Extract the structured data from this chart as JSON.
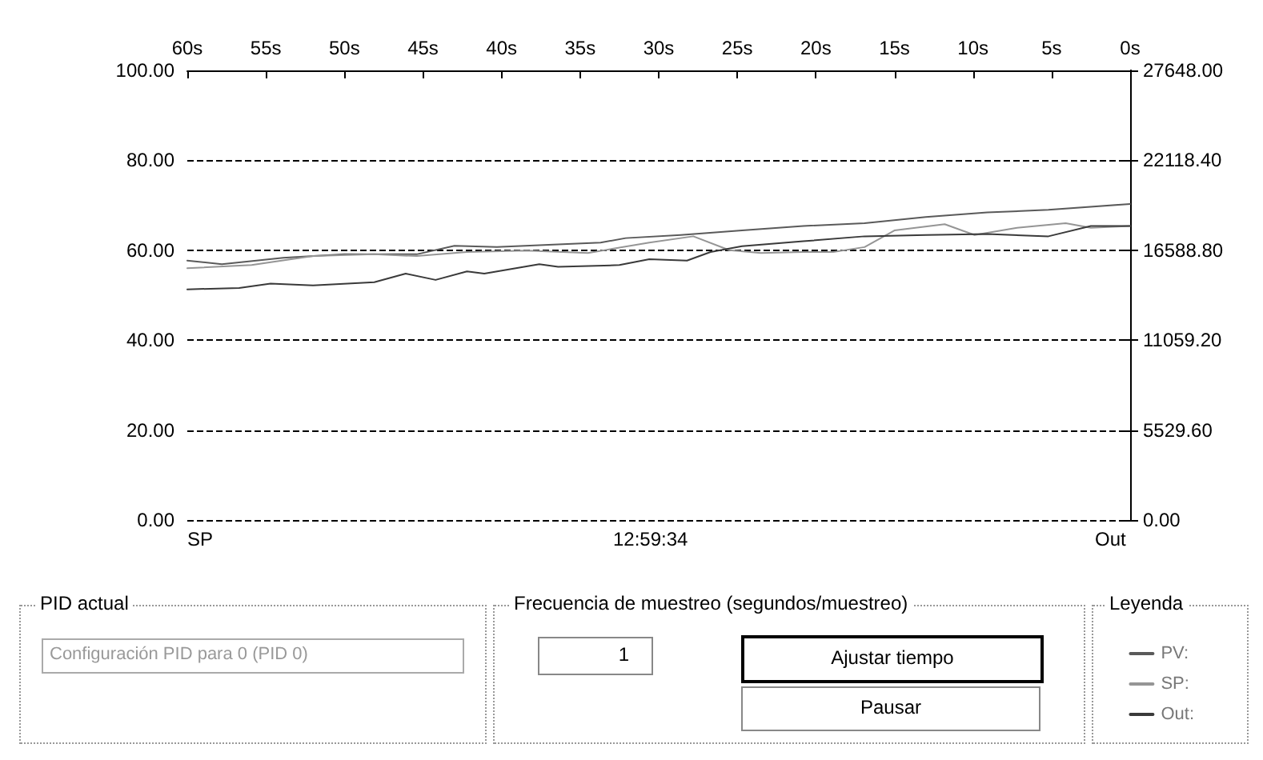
{
  "chart_data": {
    "type": "line",
    "xlim": [
      60,
      0
    ],
    "xticks": [
      {
        "value": 60,
        "label": "60s"
      },
      {
        "value": 55,
        "label": "55s"
      },
      {
        "value": 50,
        "label": "50s"
      },
      {
        "value": 45,
        "label": "45s"
      },
      {
        "value": 40,
        "label": "40s"
      },
      {
        "value": 35,
        "label": "35s"
      },
      {
        "value": 30,
        "label": "30s"
      },
      {
        "value": 25,
        "label": "25s"
      },
      {
        "value": 20,
        "label": "20s"
      },
      {
        "value": 15,
        "label": "15s"
      },
      {
        "value": 10,
        "label": "10s"
      },
      {
        "value": 5,
        "label": "5s"
      },
      {
        "value": 0,
        "label": "0s"
      }
    ],
    "ylim": [
      0,
      100
    ],
    "yticks": [
      {
        "value": 0,
        "label": "0.00"
      },
      {
        "value": 20,
        "label": "20.00"
      },
      {
        "value": 40,
        "label": "40.00"
      },
      {
        "value": 60,
        "label": "60.00"
      },
      {
        "value": 80,
        "label": "80.00"
      },
      {
        "value": 100,
        "label": "100.00"
      }
    ],
    "y2lim": [
      0,
      27648
    ],
    "y2ticks": [
      {
        "value": 0,
        "label": "0.00"
      },
      {
        "value": 5529.6,
        "label": "5529.60"
      },
      {
        "value": 11059.2,
        "label": "11059.20"
      },
      {
        "value": 16588.8,
        "label": "16588.80"
      },
      {
        "value": 22118.4,
        "label": "22118.40"
      },
      {
        "value": 27648,
        "label": "27648.00"
      }
    ],
    "grid": "y",
    "legend": "bottom right",
    "legend_title": "Leyenda",
    "marker": "none",
    "series": [
      {
        "name": "PV:",
        "color": "#5a5a5a",
        "x": [
          60,
          57.8,
          53.9,
          50,
          45.4,
          43,
          40.3,
          33.7,
          32.1,
          28.6,
          24.7,
          20.8,
          16.9,
          13,
          9.1,
          5.2,
          0
        ],
        "values": [
          57.7,
          56.9,
          58.3,
          59.1,
          59.1,
          61,
          60.7,
          61.7,
          62.7,
          63.4,
          64.4,
          65.4,
          66,
          67.4,
          68.4,
          69,
          70.3
        ]
      },
      {
        "name": "SP:",
        "color": "#959595",
        "x": [
          60,
          55.9,
          52,
          48.1,
          45.4,
          42.2,
          38.4,
          34.5,
          30.6,
          27.8,
          25.5,
          23.5,
          20.8,
          18.9,
          16.9,
          15,
          11.8,
          9.9,
          7.2,
          4.1,
          2.5,
          0
        ],
        "values": [
          56,
          56.7,
          58.7,
          59.1,
          58.7,
          59.6,
          59.9,
          59.4,
          61.7,
          63.1,
          60,
          59.4,
          59.6,
          59.6,
          60.7,
          64.4,
          65.8,
          63.4,
          65,
          66,
          65,
          65.4
        ]
      },
      {
        "name": "Out:",
        "color": "#3a3a3a",
        "x": [
          60,
          56.7,
          54.7,
          52,
          48.1,
          46.1,
          44.2,
          42.2,
          41.1,
          37.6,
          36.4,
          32.5,
          30.6,
          28.2,
          26.7,
          24.7,
          20.8,
          16.9,
          13,
          9.1,
          5.2,
          2.5,
          0
        ],
        "values": [
          51.3,
          51.6,
          52.6,
          52.2,
          52.9,
          54.8,
          53.4,
          55.3,
          54.8,
          56.9,
          56.3,
          56.7,
          58,
          57.7,
          59.6,
          60.9,
          62,
          63.1,
          63.4,
          63.6,
          63.1,
          65.4,
          65.4
        ]
      }
    ],
    "annotations": [
      "SP",
      "12:59:34",
      "Out",
      "PID actual",
      "Configuración PID para 0 (PID 0)",
      "Frecuencia de muestreo (segundos/muestreo)",
      "1",
      "Ajustar tiempo",
      "Pausar"
    ]
  }
}
